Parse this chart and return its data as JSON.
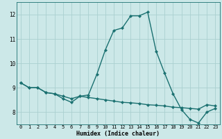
{
  "title": "",
  "xlabel": "Humidex (Indice chaleur)",
  "ylabel": "",
  "bg_color": "#cce8e8",
  "grid_color": "#aad0d0",
  "line_color": "#1a7070",
  "line1_x": [
    0,
    1,
    2,
    3,
    4,
    5,
    6,
    7,
    8,
    9,
    10,
    11,
    12,
    13,
    14,
    15,
    16,
    17,
    18,
    19,
    20,
    21,
    22,
    23
  ],
  "line1_y": [
    9.2,
    9.0,
    9.0,
    8.8,
    8.75,
    8.55,
    8.4,
    8.65,
    8.7,
    9.55,
    10.55,
    11.35,
    11.45,
    11.95,
    11.95,
    12.1,
    10.5,
    9.6,
    8.75,
    8.1,
    7.7,
    7.55,
    8.0,
    8.15
  ],
  "line2_x": [
    0,
    1,
    2,
    3,
    4,
    5,
    6,
    7,
    8,
    9,
    10,
    11,
    12,
    13,
    14,
    15,
    16,
    17,
    18,
    19,
    20,
    21,
    22,
    23
  ],
  "line2_y": [
    9.2,
    9.0,
    9.0,
    8.8,
    8.75,
    8.65,
    8.55,
    8.65,
    8.6,
    8.55,
    8.5,
    8.45,
    8.4,
    8.38,
    8.35,
    8.3,
    8.28,
    8.25,
    8.2,
    8.18,
    8.15,
    8.12,
    8.3,
    8.25
  ],
  "xlim": [
    -0.5,
    23.5
  ],
  "ylim": [
    7.5,
    12.5
  ],
  "yticks": [
    8,
    9,
    10,
    11,
    12
  ],
  "xticks": [
    0,
    1,
    2,
    3,
    4,
    5,
    6,
    7,
    8,
    9,
    10,
    11,
    12,
    13,
    14,
    15,
    16,
    17,
    18,
    19,
    20,
    21,
    22,
    23
  ],
  "xtick_labels": [
    "0",
    "1",
    "2",
    "3",
    "4",
    "5",
    "6",
    "7",
    "8",
    "9",
    "10",
    "11",
    "12",
    "13",
    "14",
    "15",
    "16",
    "17",
    "18",
    "19",
    "20",
    "21",
    "22",
    "23"
  ],
  "marker": "D",
  "markersize": 2.2,
  "linewidth": 1.0,
  "xlabel_fontsize": 6.0,
  "tick_fontsize": 5.0
}
